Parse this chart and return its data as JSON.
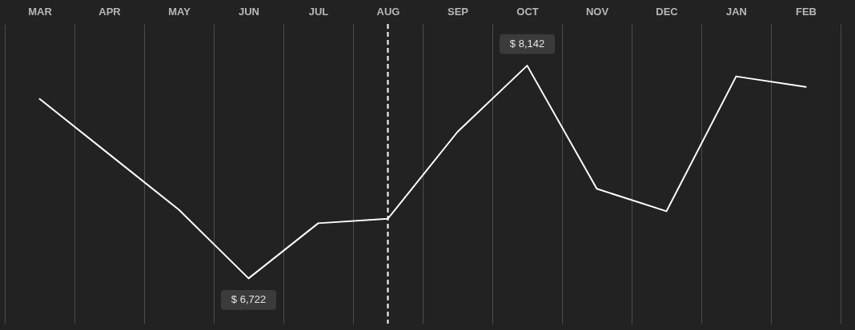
{
  "chart_data": {
    "type": "line",
    "categories": [
      "MAR",
      "APR",
      "MAY",
      "JUN",
      "JUL",
      "AUG",
      "SEP",
      "OCT",
      "NOV",
      "DEC",
      "JAN",
      "FEB"
    ],
    "values": [
      7920,
      7550,
      7180,
      6722,
      7090,
      7120,
      7700,
      8142,
      7320,
      7170,
      8070,
      8000
    ],
    "value_labels": [
      null,
      null,
      null,
      "$ 6,722",
      null,
      null,
      null,
      "$ 8,142",
      null,
      null,
      null,
      null
    ],
    "color": "#ffffff",
    "ylim": [
      6420,
      8420
    ],
    "tick_labels": "x",
    "grid": "x",
    "marker": "none",
    "line_style": "solid",
    "ref_lines": [
      {
        "axis": "x",
        "value": "AUG",
        "color": "#ffffff",
        "line_style": "dashed"
      }
    ]
  }
}
